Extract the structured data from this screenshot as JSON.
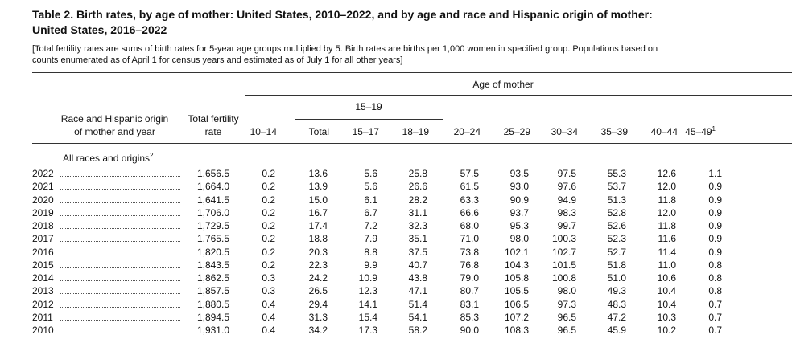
{
  "header": {
    "title_lines": [
      "Table 2. Birth rates, by age of mother: United States, 2010–2022, and by age and race and Hispanic origin of mother:",
      "United States, 2016–2022"
    ],
    "note_lines": [
      "[Total fertility rates are sums of birth rates for 5-year age groups multiplied by 5. Birth rates are births per 1,000 women in specified group. Populations based on",
      "counts enumerated as of April 1 for census years and estimated as of July 1 for all other years]"
    ]
  },
  "table": {
    "stub_header": [
      "Race and Hispanic origin",
      "of mother and year"
    ],
    "tfr_header": [
      "Total fertility",
      "rate"
    ],
    "age_header": "Age of mother",
    "group_header": "15–19",
    "columns": [
      {
        "label": "10–14"
      },
      {
        "label": "Total"
      },
      {
        "label": "15–17"
      },
      {
        "label": "18–19"
      },
      {
        "label": "20–24"
      },
      {
        "label": "25–29"
      },
      {
        "label": "30–34"
      },
      {
        "label": "35–39"
      },
      {
        "label": "40–44"
      },
      {
        "label": "45–49",
        "footnote": "1"
      }
    ],
    "section": {
      "label": "All races and origins",
      "footnote": "2"
    },
    "rows": [
      [
        "2022",
        "1,656.5",
        "0.2",
        "13.6",
        "5.6",
        "25.8",
        "57.5",
        "93.5",
        "97.5",
        "55.3",
        "12.6",
        "1.1"
      ],
      [
        "2021",
        "1,664.0",
        "0.2",
        "13.9",
        "5.6",
        "26.6",
        "61.5",
        "93.0",
        "97.6",
        "53.7",
        "12.0",
        "0.9"
      ],
      [
        "2020",
        "1,641.5",
        "0.2",
        "15.0",
        "6.1",
        "28.2",
        "63.3",
        "90.9",
        "94.9",
        "51.3",
        "11.8",
        "0.9"
      ],
      [
        "2019",
        "1,706.0",
        "0.2",
        "16.7",
        "6.7",
        "31.1",
        "66.6",
        "93.7",
        "98.3",
        "52.8",
        "12.0",
        "0.9"
      ],
      [
        "2018",
        "1,729.5",
        "0.2",
        "17.4",
        "7.2",
        "32.3",
        "68.0",
        "95.3",
        "99.7",
        "52.6",
        "11.8",
        "0.9"
      ],
      [
        "2017",
        "1,765.5",
        "0.2",
        "18.8",
        "7.9",
        "35.1",
        "71.0",
        "98.0",
        "100.3",
        "52.3",
        "11.6",
        "0.9"
      ],
      [
        "2016",
        "1,820.5",
        "0.2",
        "20.3",
        "8.8",
        "37.5",
        "73.8",
        "102.1",
        "102.7",
        "52.7",
        "11.4",
        "0.9"
      ],
      [
        "2015",
        "1,843.5",
        "0.2",
        "22.3",
        "9.9",
        "40.7",
        "76.8",
        "104.3",
        "101.5",
        "51.8",
        "11.0",
        "0.8"
      ],
      [
        "2014",
        "1,862.5",
        "0.3",
        "24.2",
        "10.9",
        "43.8",
        "79.0",
        "105.8",
        "100.8",
        "51.0",
        "10.6",
        "0.8"
      ],
      [
        "2013",
        "1,857.5",
        "0.3",
        "26.5",
        "12.3",
        "47.1",
        "80.7",
        "105.5",
        "98.0",
        "49.3",
        "10.4",
        "0.8"
      ],
      [
        "2012",
        "1,880.5",
        "0.4",
        "29.4",
        "14.1",
        "51.4",
        "83.1",
        "106.5",
        "97.3",
        "48.3",
        "10.4",
        "0.7"
      ],
      [
        "2011",
        "1,894.5",
        "0.4",
        "31.3",
        "15.4",
        "54.1",
        "85.3",
        "107.2",
        "96.5",
        "47.2",
        "10.3",
        "0.7"
      ],
      [
        "2010",
        "1,931.0",
        "0.4",
        "34.2",
        "17.3",
        "58.2",
        "90.0",
        "108.3",
        "96.5",
        "45.9",
        "10.2",
        "0.7"
      ]
    ]
  }
}
